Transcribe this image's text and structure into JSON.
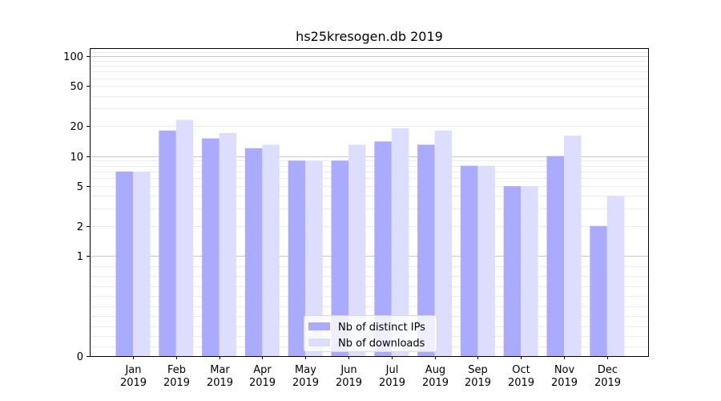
{
  "chart_data": {
    "type": "bar",
    "title": "hs25kresogen.db 2019",
    "xlabel": "",
    "ylabel": "",
    "y_scale": "symlog",
    "ylim": [
      0,
      120
    ],
    "y_ticks": [
      0,
      1,
      2,
      5,
      10,
      20,
      50,
      100
    ],
    "categories": [
      {
        "month": "Jan",
        "year": "2019"
      },
      {
        "month": "Feb",
        "year": "2019"
      },
      {
        "month": "Mar",
        "year": "2019"
      },
      {
        "month": "Apr",
        "year": "2019"
      },
      {
        "month": "May",
        "year": "2019"
      },
      {
        "month": "Jun",
        "year": "2019"
      },
      {
        "month": "Jul",
        "year": "2019"
      },
      {
        "month": "Aug",
        "year": "2019"
      },
      {
        "month": "Sep",
        "year": "2019"
      },
      {
        "month": "Oct",
        "year": "2019"
      },
      {
        "month": "Nov",
        "year": "2019"
      },
      {
        "month": "Dec",
        "year": "2019"
      }
    ],
    "series": [
      {
        "name": "Nb of distinct IPs",
        "color": "#aaaaff",
        "values": [
          7,
          18,
          15,
          12,
          9,
          9,
          14,
          13,
          8,
          5,
          10,
          2
        ]
      },
      {
        "name": "Nb of downloads",
        "color": "#ddddff",
        "values": [
          7,
          23,
          17,
          13,
          9,
          13,
          19,
          18,
          8,
          5,
          16,
          4
        ]
      }
    ],
    "grid": true,
    "legend_position": "lower-center"
  }
}
